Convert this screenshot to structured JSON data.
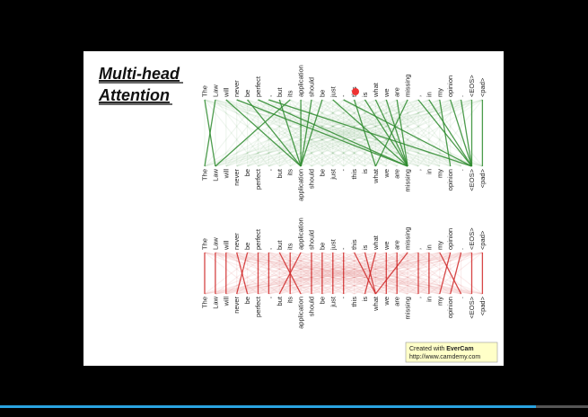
{
  "slide": {
    "title_lines": [
      "Multi-head",
      "Attention"
    ],
    "tokens": [
      "The",
      "Law",
      "will",
      "never",
      "be",
      "perfect",
      ",",
      "but",
      "its",
      "application",
      "should",
      "be",
      "just",
      "-",
      "this",
      "is",
      "what",
      "we",
      "are",
      "missing",
      ",",
      "in",
      "my",
      "opinion",
      ".",
      "<EOS>",
      "<pad>"
    ],
    "watermark": {
      "line1": "Created with",
      "brand": "EverCam",
      "line2": "http://www.camdemy.com"
    }
  }
}
